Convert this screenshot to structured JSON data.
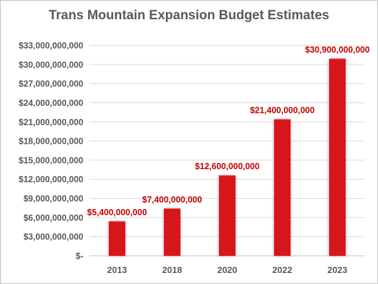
{
  "chart_data": {
    "type": "bar",
    "title": "Trans Mountain Expansion Budget Estimates",
    "xlabel": "",
    "ylabel": "",
    "categories": [
      "2013",
      "2018",
      "2020",
      "2022",
      "2023"
    ],
    "values": [
      5400000000,
      7400000000,
      12600000000,
      21400000000,
      30900000000
    ],
    "data_labels": [
      "$5,400,000,000",
      "$7,400,000,000",
      "$12,600,000,000",
      "$21,400,000,000",
      "$30,900,000,000"
    ],
    "ylim": [
      0,
      33000000000
    ],
    "y_ticks": [
      {
        "value": 0,
        "label": "$-"
      },
      {
        "value": 3000000000,
        "label": "$3,000,000,000"
      },
      {
        "value": 6000000000,
        "label": "$6,000,000,000"
      },
      {
        "value": 9000000000,
        "label": "$9,000,000,000"
      },
      {
        "value": 12000000000,
        "label": "$12,000,000,000"
      },
      {
        "value": 15000000000,
        "label": "$15,000,000,000"
      },
      {
        "value": 18000000000,
        "label": "$18,000,000,000"
      },
      {
        "value": 21000000000,
        "label": "$21,000,000,000"
      },
      {
        "value": 24000000000,
        "label": "$24,000,000,000"
      },
      {
        "value": 27000000000,
        "label": "$27,000,000,000"
      },
      {
        "value": 30000000000,
        "label": "$30,000,000,000"
      },
      {
        "value": 33000000000,
        "label": "$33,000,000,000"
      }
    ],
    "grid": true,
    "legend": "none",
    "colors": {
      "bar": "#d7191c",
      "data_label": "#c00000",
      "text": "#595959",
      "grid": "#d9d9d9"
    }
  }
}
